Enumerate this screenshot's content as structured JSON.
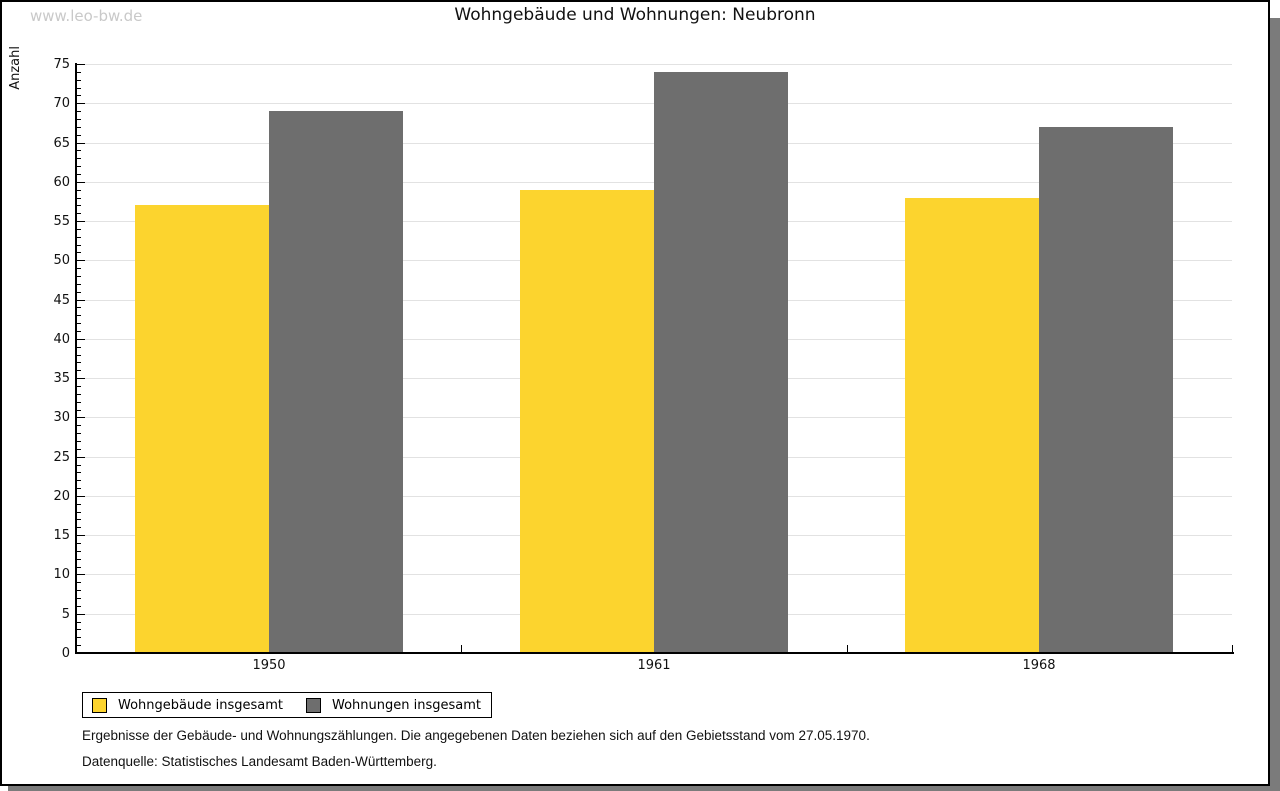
{
  "watermark": "www.leo-bw.de",
  "chart_data": {
    "type": "bar",
    "title": "Wohngebäude und Wohnungen: Neubronn",
    "ylabel": "Anzahl",
    "xlabel": "",
    "categories": [
      "1950",
      "1961",
      "1968"
    ],
    "series": [
      {
        "name": "Wohngebäude insgesamt",
        "color": "#FCD42E",
        "values": [
          57,
          59,
          58
        ]
      },
      {
        "name": "Wohnungen insgesamt",
        "color": "#6E6E6E",
        "values": [
          69,
          74,
          67
        ]
      }
    ],
    "ylim": [
      0,
      75
    ],
    "ytick_major": 5,
    "ytick_minor": 1,
    "grid": true,
    "legend_position": "bottom-left"
  },
  "footnotes": [
    "Ergebnisse der Gebäude- und Wohnungszählungen. Die angegebenen Daten beziehen sich auf den Gebietsstand vom 27.05.1970.",
    "Datenquelle: Statistisches Landesamt Baden-Württemberg."
  ],
  "colors": {
    "grid": "#e2e2e2",
    "axis": "#000000",
    "watermark": "#c9c9c9",
    "shadow": "#7b7b7b",
    "canvas_border": "#000000"
  }
}
